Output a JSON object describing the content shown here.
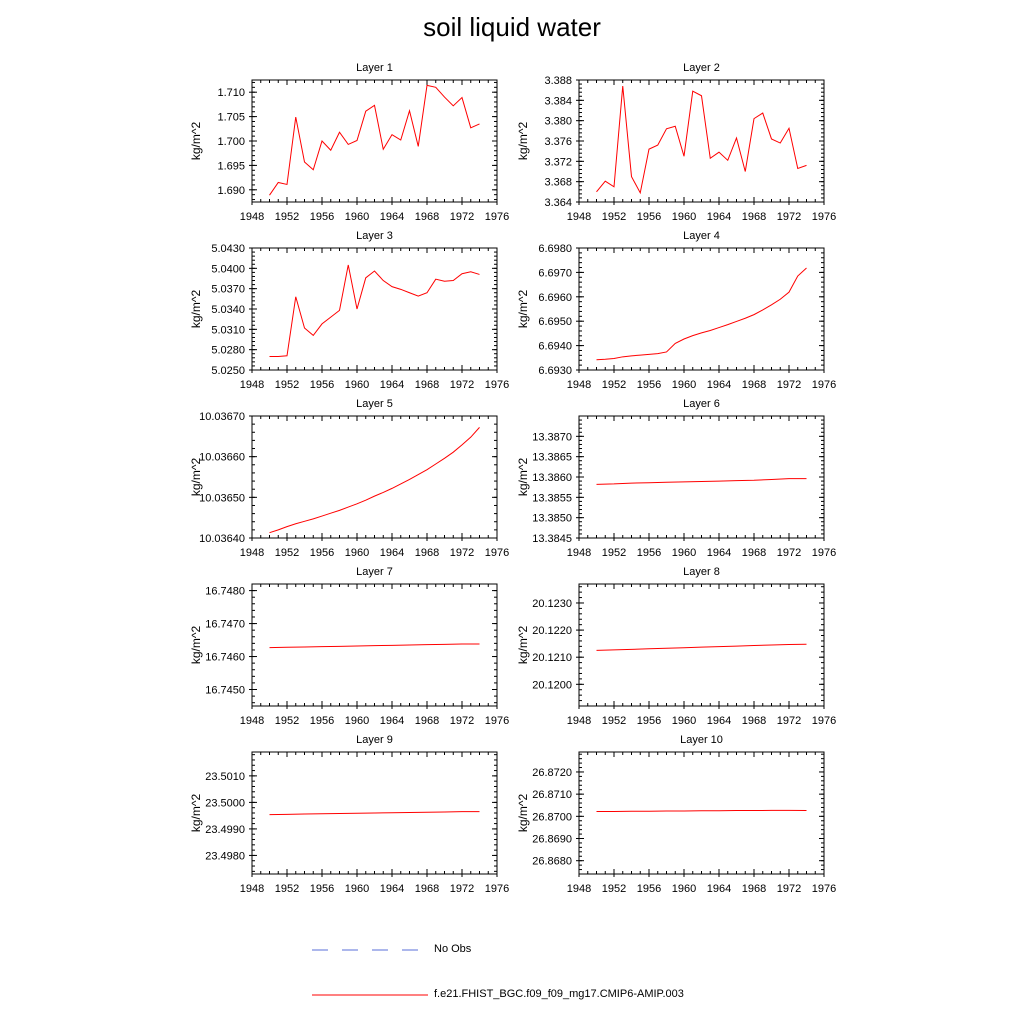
{
  "figure_title": "soil liquid water",
  "legend": {
    "obs_label": "No Obs",
    "obs_color": "#5a6fd8",
    "model_label": "f.e21.FHIST_BGC.f09_f09_mg17.CMIP6-AMIP.003",
    "model_color": "#ff0000"
  },
  "chart_data": [
    {
      "type": "line",
      "title": "Layer 1",
      "xlabel": "",
      "ylabel": "kg/m^2",
      "xlim": [
        1948,
        1976
      ],
      "x_ticks": [
        "1948",
        "1952",
        "1956",
        "1960",
        "1964",
        "1968",
        "1972",
        "1976"
      ],
      "ylim": [
        1.6875,
        1.7125
      ],
      "y_ticks": [
        "1.690",
        "1.695",
        "1.700",
        "1.705",
        "1.710"
      ],
      "y_tick_values": [
        1.69,
        1.695,
        1.7,
        1.705,
        1.71
      ],
      "series": [
        {
          "name": "f.e21.FHIST_BGC.f09_f09_mg17.CMIP6-AMIP.003",
          "x": [
            1950,
            1951,
            1952,
            1953,
            1954,
            1955,
            1956,
            1957,
            1958,
            1959,
            1960,
            1961,
            1962,
            1963,
            1964,
            1965,
            1966,
            1967,
            1968,
            1969,
            1970,
            1971,
            1972,
            1973,
            1974
          ],
          "values": [
            1.6889,
            1.6915,
            1.6911,
            1.7049,
            1.6957,
            1.6941,
            1.7,
            1.6981,
            1.7018,
            1.6993,
            1.7001,
            1.7061,
            1.7073,
            1.6983,
            1.7013,
            1.7002,
            1.7062,
            1.6989,
            1.7114,
            1.711,
            1.709,
            1.7072,
            1.7089,
            1.7027,
            1.7035
          ]
        }
      ]
    },
    {
      "type": "line",
      "title": "Layer 2",
      "xlabel": "",
      "ylabel": "kg/m^2",
      "xlim": [
        1948,
        1976
      ],
      "x_ticks": [
        "1948",
        "1952",
        "1956",
        "1960",
        "1964",
        "1968",
        "1972",
        "1976"
      ],
      "ylim": [
        3.364,
        3.388
      ],
      "y_ticks": [
        "3.364",
        "3.368",
        "3.372",
        "3.376",
        "3.380",
        "3.384",
        "3.388"
      ],
      "y_tick_values": [
        3.364,
        3.368,
        3.372,
        3.376,
        3.38,
        3.384,
        3.388
      ],
      "series": [
        {
          "name": "f.e21.FHIST_BGC.f09_f09_mg17.CMIP6-AMIP.003",
          "x": [
            1950,
            1951,
            1952,
            1953,
            1954,
            1955,
            1956,
            1957,
            1958,
            1959,
            1960,
            1961,
            1962,
            1963,
            1964,
            1965,
            1966,
            1967,
            1968,
            1969,
            1970,
            1971,
            1972,
            1973,
            1974
          ],
          "values": [
            3.366,
            3.3681,
            3.367,
            3.3868,
            3.369,
            3.3658,
            3.3744,
            3.3752,
            3.3784,
            3.3789,
            3.373,
            3.3858,
            3.3849,
            3.3726,
            3.3738,
            3.3722,
            3.3766,
            3.37,
            3.3804,
            3.3815,
            3.3764,
            3.3756,
            3.3785,
            3.3706,
            3.3712
          ]
        }
      ]
    },
    {
      "type": "line",
      "title": "Layer 3",
      "xlabel": "",
      "ylabel": "kg/m^2",
      "xlim": [
        1948,
        1976
      ],
      "x_ticks": [
        "1948",
        "1952",
        "1956",
        "1960",
        "1964",
        "1968",
        "1972",
        "1976"
      ],
      "ylim": [
        5.025,
        5.043
      ],
      "y_ticks": [
        "5.0250",
        "5.0280",
        "5.0310",
        "5.0340",
        "5.0370",
        "5.0400",
        "5.0430"
      ],
      "y_tick_values": [
        5.025,
        5.028,
        5.031,
        5.034,
        5.037,
        5.04,
        5.043
      ],
      "series": [
        {
          "name": "f.e21.FHIST_BGC.f09_f09_mg17.CMIP6-AMIP.003",
          "x": [
            1950,
            1951,
            1952,
            1953,
            1954,
            1955,
            1956,
            1957,
            1958,
            1959,
            1960,
            1961,
            1962,
            1963,
            1964,
            1965,
            1966,
            1967,
            1968,
            1969,
            1970,
            1971,
            1972,
            1973,
            1974
          ],
          "values": [
            5.027,
            5.027,
            5.0271,
            5.0358,
            5.0312,
            5.0301,
            5.0318,
            5.0328,
            5.0338,
            5.0405,
            5.034,
            5.0386,
            5.0396,
            5.0382,
            5.0373,
            5.0369,
            5.0364,
            5.0359,
            5.0364,
            5.0384,
            5.0381,
            5.0382,
            5.0392,
            5.0395,
            5.0391
          ]
        }
      ]
    },
    {
      "type": "line",
      "title": "Layer 4",
      "xlabel": "",
      "ylabel": "kg/m^2",
      "xlim": [
        1948,
        1976
      ],
      "x_ticks": [
        "1948",
        "1952",
        "1956",
        "1960",
        "1964",
        "1968",
        "1972",
        "1976"
      ],
      "ylim": [
        6.693,
        6.698
      ],
      "y_ticks": [
        "6.6930",
        "6.6940",
        "6.6950",
        "6.6960",
        "6.6970",
        "6.6980"
      ],
      "y_tick_values": [
        6.693,
        6.694,
        6.695,
        6.696,
        6.697,
        6.698
      ],
      "series": [
        {
          "name": "f.e21.FHIST_BGC.f09_f09_mg17.CMIP6-AMIP.003",
          "x": [
            1950,
            1951,
            1952,
            1953,
            1954,
            1955,
            1956,
            1957,
            1958,
            1959,
            1960,
            1961,
            1962,
            1963,
            1964,
            1965,
            1966,
            1967,
            1968,
            1969,
            1970,
            1971,
            1972,
            1973,
            1974
          ],
          "values": [
            6.69342,
            6.69344,
            6.69347,
            6.69354,
            6.69358,
            6.69361,
            6.69364,
            6.69367,
            6.69374,
            6.69409,
            6.69427,
            6.69441,
            6.69452,
            6.69462,
            6.69474,
            6.69486,
            6.69499,
            6.69512,
            6.69527,
            6.69546,
            6.69567,
            6.6959,
            6.69619,
            6.69685,
            6.69718
          ]
        }
      ]
    },
    {
      "type": "line",
      "title": "Layer 5",
      "xlabel": "",
      "ylabel": "kg/m^2",
      "xlim": [
        1948,
        1976
      ],
      "x_ticks": [
        "1948",
        "1952",
        "1956",
        "1960",
        "1964",
        "1968",
        "1972",
        "1976"
      ],
      "ylim": [
        10.0364,
        10.0367
      ],
      "y_ticks": [
        "10.03640",
        "10.03650",
        "10.03660",
        "10.03670"
      ],
      "y_tick_values": [
        10.0364,
        10.0365,
        10.0366,
        10.0367
      ],
      "series": [
        {
          "name": "f.e21.FHIST_BGC.f09_f09_mg17.CMIP6-AMIP.003",
          "x": [
            1950,
            1951,
            1952,
            1953,
            1954,
            1955,
            1956,
            1957,
            1958,
            1959,
            1960,
            1961,
            1962,
            1963,
            1964,
            1965,
            1966,
            1967,
            1968,
            1969,
            1970,
            1971,
            1972,
            1973,
            1974
          ],
          "values": [
            10.036413,
            10.03642,
            10.036428,
            10.036435,
            10.036441,
            10.036447,
            10.036454,
            10.036461,
            10.036468,
            10.036476,
            10.036484,
            10.036493,
            10.036503,
            10.036512,
            10.036522,
            10.036533,
            10.036544,
            10.036556,
            10.036568,
            10.036582,
            10.036596,
            10.036611,
            10.036629,
            10.036648,
            10.036672
          ]
        }
      ]
    },
    {
      "type": "line",
      "title": "Layer 6",
      "xlabel": "",
      "ylabel": "kg/m^2",
      "xlim": [
        1948,
        1976
      ],
      "x_ticks": [
        "1948",
        "1952",
        "1956",
        "1960",
        "1964",
        "1968",
        "1972",
        "1976"
      ],
      "ylim": [
        13.3845,
        13.3875
      ],
      "y_ticks": [
        "13.3845",
        "13.3850",
        "13.3855",
        "13.3860",
        "13.3865",
        "13.3870"
      ],
      "y_tick_values": [
        13.3845,
        13.385,
        13.3855,
        13.386,
        13.3865,
        13.387
      ],
      "series": [
        {
          "name": "f.e21.FHIST_BGC.f09_f09_mg17.CMIP6-AMIP.003",
          "x": [
            1950,
            1952,
            1954,
            1956,
            1958,
            1960,
            1962,
            1964,
            1966,
            1968,
            1970,
            1972,
            1974
          ],
          "values": [
            13.38582,
            13.38583,
            13.38585,
            13.38586,
            13.38587,
            13.38588,
            13.38589,
            13.3859,
            13.38591,
            13.38592,
            13.38594,
            13.38596,
            13.38596
          ]
        }
      ]
    },
    {
      "type": "line",
      "title": "Layer 7",
      "xlabel": "",
      "ylabel": "kg/m^2",
      "xlim": [
        1948,
        1976
      ],
      "x_ticks": [
        "1948",
        "1952",
        "1956",
        "1960",
        "1964",
        "1968",
        "1972",
        "1976"
      ],
      "ylim": [
        16.7445,
        16.7482
      ],
      "y_ticks": [
        "16.7450",
        "16.7460",
        "16.7470",
        "16.7480"
      ],
      "y_tick_values": [
        16.745,
        16.746,
        16.747,
        16.748
      ],
      "series": [
        {
          "name": "f.e21.FHIST_BGC.f09_f09_mg17.CMIP6-AMIP.003",
          "x": [
            1950,
            1952,
            1954,
            1956,
            1958,
            1960,
            1962,
            1964,
            1966,
            1968,
            1970,
            1972,
            1974
          ],
          "values": [
            16.74627,
            16.74628,
            16.74629,
            16.7463,
            16.74631,
            16.74632,
            16.74633,
            16.74634,
            16.74635,
            16.74636,
            16.74637,
            16.74638,
            16.74638
          ]
        }
      ]
    },
    {
      "type": "line",
      "title": "Layer 8",
      "xlabel": "",
      "ylabel": "kg/m^2",
      "xlim": [
        1948,
        1976
      ],
      "x_ticks": [
        "1948",
        "1952",
        "1956",
        "1960",
        "1964",
        "1968",
        "1972",
        "1976"
      ],
      "ylim": [
        20.1192,
        20.1237
      ],
      "y_ticks": [
        "20.1200",
        "20.1210",
        "20.1220",
        "20.1230"
      ],
      "y_tick_values": [
        20.12,
        20.121,
        20.122,
        20.123
      ],
      "series": [
        {
          "name": "f.e21.FHIST_BGC.f09_f09_mg17.CMIP6-AMIP.003",
          "x": [
            1950,
            1952,
            1954,
            1956,
            1958,
            1960,
            1962,
            1964,
            1966,
            1968,
            1970,
            1972,
            1974
          ],
          "values": [
            20.12125,
            20.12127,
            20.12129,
            20.12131,
            20.12133,
            20.12135,
            20.12137,
            20.12139,
            20.12141,
            20.12143,
            20.12145,
            20.12147,
            20.12148
          ]
        }
      ]
    },
    {
      "type": "line",
      "title": "Layer 9",
      "xlabel": "",
      "ylabel": "kg/m^2",
      "xlim": [
        1948,
        1976
      ],
      "x_ticks": [
        "1948",
        "1952",
        "1956",
        "1960",
        "1964",
        "1968",
        "1972",
        "1976"
      ],
      "ylim": [
        23.4973,
        23.5019
      ],
      "y_ticks": [
        "23.4980",
        "23.4990",
        "23.5000",
        "23.5010"
      ],
      "y_tick_values": [
        23.498,
        23.499,
        23.5,
        23.501
      ],
      "series": [
        {
          "name": "f.e21.FHIST_BGC.f09_f09_mg17.CMIP6-AMIP.003",
          "x": [
            1950,
            1952,
            1954,
            1956,
            1958,
            1960,
            1962,
            1964,
            1966,
            1968,
            1970,
            1972,
            1974
          ],
          "values": [
            23.49954,
            23.49955,
            23.49956,
            23.49957,
            23.49958,
            23.49959,
            23.4996,
            23.49961,
            23.49962,
            23.49963,
            23.49964,
            23.49965,
            23.49965
          ]
        }
      ]
    },
    {
      "type": "line",
      "title": "Layer 10",
      "xlabel": "",
      "ylabel": "kg/m^2",
      "xlim": [
        1948,
        1976
      ],
      "x_ticks": [
        "1948",
        "1952",
        "1956",
        "1960",
        "1964",
        "1968",
        "1972",
        "1976"
      ],
      "ylim": [
        26.8674,
        26.8729
      ],
      "y_ticks": [
        "26.8680",
        "26.8690",
        "26.8700",
        "26.8710",
        "26.8720"
      ],
      "y_tick_values": [
        26.868,
        26.869,
        26.87,
        26.871,
        26.872
      ],
      "series": [
        {
          "name": "f.e21.FHIST_BGC.f09_f09_mg17.CMIP6-AMIP.003",
          "x": [
            1950,
            1952,
            1954,
            1956,
            1958,
            1960,
            1962,
            1964,
            1966,
            1968,
            1970,
            1972,
            1974
          ],
          "values": [
            26.87022,
            26.87022,
            26.87023,
            26.87023,
            26.87024,
            26.87024,
            26.87025,
            26.87025,
            26.87026,
            26.87026,
            26.87027,
            26.87027,
            26.87026
          ]
        }
      ]
    }
  ]
}
